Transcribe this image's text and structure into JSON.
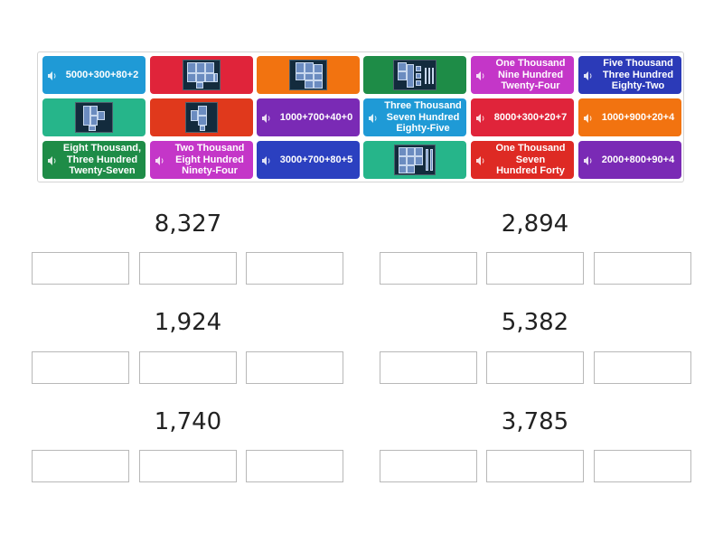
{
  "tray": {
    "tiles": [
      {
        "text": "5000+300+80+2",
        "type": "text",
        "color": "#1f9ad6"
      },
      {
        "text": "",
        "type": "image",
        "icon": "base-ten-blocks-image",
        "color": "#e0243a"
      },
      {
        "text": "",
        "type": "image",
        "icon": "base-ten-blocks-image",
        "color": "#f27310"
      },
      {
        "text": "",
        "type": "image",
        "icon": "base-ten-blocks-image",
        "color": "#1e8c47"
      },
      {
        "text": "One Thousand\nNine Hundred\nTwenty-Four",
        "type": "text",
        "color": "#c436c8"
      },
      {
        "text": "Five Thousand\nThree Hundred\nEighty-Two",
        "type": "text",
        "color": "#2b3ab8"
      },
      {
        "text": "",
        "type": "image",
        "icon": "base-ten-blocks-image",
        "color": "#26b58a"
      },
      {
        "text": "",
        "type": "image",
        "icon": "base-ten-blocks-image",
        "color": "#e0391c"
      },
      {
        "text": "1000+700+40+0",
        "type": "text",
        "color": "#7a2ab5"
      },
      {
        "text": "Three Thousand\nSeven Hundred\nEighty-Five",
        "type": "text",
        "color": "#1f9ad6"
      },
      {
        "text": "8000+300+20+7",
        "type": "text",
        "color": "#e0243a"
      },
      {
        "text": "1000+900+20+4",
        "type": "text",
        "color": "#f27310"
      },
      {
        "text": "Eight Thousand,\nThree Hundred\nTwenty-Seven",
        "type": "text",
        "color": "#1e8c47"
      },
      {
        "text": "Two Thousand\nEight Hundred\nNinety-Four",
        "type": "text",
        "color": "#c436c8"
      },
      {
        "text": "3000+700+80+5",
        "type": "text",
        "color": "#2b40c0"
      },
      {
        "text": "",
        "type": "image",
        "icon": "base-ten-blocks-image",
        "color": "#26b58a"
      },
      {
        "text": "One Thousand\nSeven\nHundred Forty",
        "type": "text",
        "color": "#de2a24"
      },
      {
        "text": "2000+800+90+4",
        "type": "text",
        "color": "#7a2ab5"
      }
    ]
  },
  "groups": [
    {
      "number": "8,327"
    },
    {
      "number": "2,894"
    },
    {
      "number": "1,924"
    },
    {
      "number": "5,382"
    },
    {
      "number": "1,740"
    },
    {
      "number": "3,785"
    }
  ]
}
